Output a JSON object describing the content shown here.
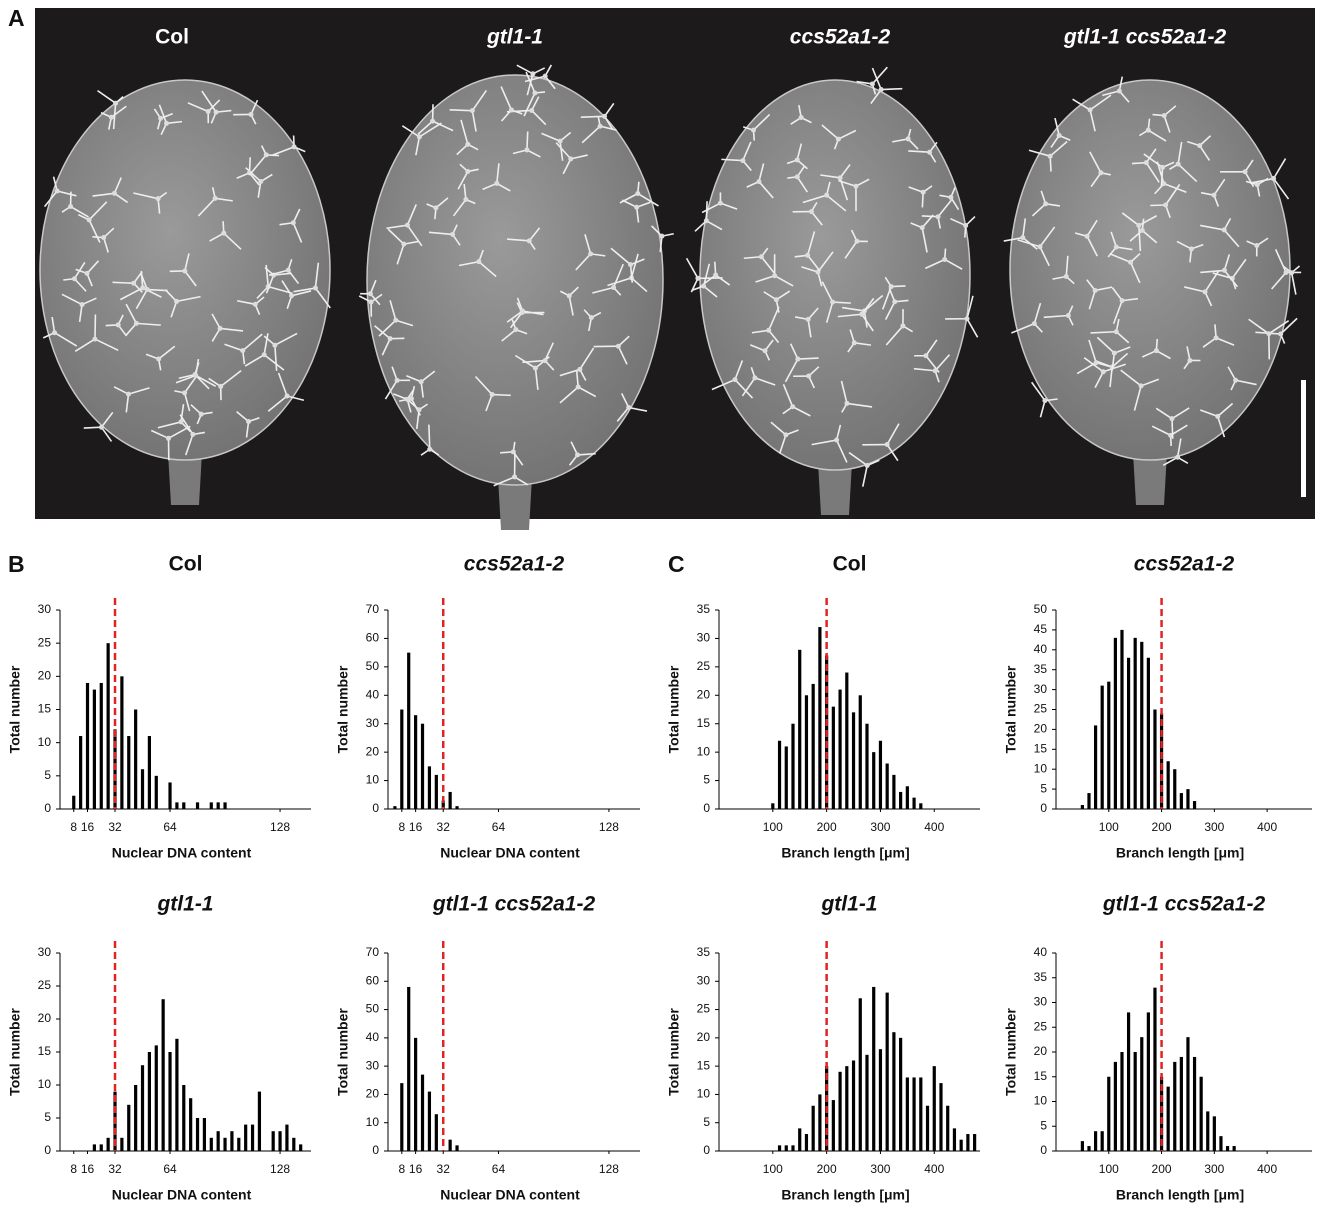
{
  "panel_labels": [
    "A",
    "B",
    "C"
  ],
  "panel_a": {
    "labels": [
      "Col",
      "gtl1-1",
      "ccs52a1-2",
      "gtl1-1 ccs52a1-2"
    ]
  },
  "chart_data": [
    {
      "type": "bar",
      "title": "Col",
      "x_label": "Nuclear DNA content",
      "y_label": "Total number",
      "x": [
        4,
        8,
        12,
        16,
        20,
        24,
        28,
        32,
        36,
        40,
        44,
        48,
        52,
        56,
        60,
        64,
        68,
        72,
        76,
        80,
        84,
        88,
        92,
        96,
        100,
        104,
        108,
        112,
        116,
        120,
        124,
        128,
        132,
        136,
        140,
        144
      ],
      "values": [
        0,
        2,
        11,
        19,
        18,
        19,
        25,
        12,
        20,
        11,
        15,
        6,
        11,
        5,
        0,
        4,
        1,
        1,
        0,
        1,
        0,
        1,
        1,
        1,
        0,
        0,
        0,
        0,
        0,
        0,
        0,
        0,
        0,
        0,
        0,
        0
      ],
      "color": "#000000",
      "xlim": [
        0,
        146
      ],
      "xticks": [
        8,
        16,
        32,
        64,
        128
      ],
      "ylim": [
        0,
        30
      ],
      "yticks": [
        0,
        5,
        10,
        15,
        20,
        25,
        30
      ],
      "ref_line": {
        "value": 32,
        "color": "#e02424"
      }
    },
    {
      "type": "bar",
      "title": "ccs52a1-2",
      "x_label": "Nuclear DNA content",
      "y_label": "Total number",
      "x": [
        4,
        8,
        12,
        16,
        20,
        24,
        28,
        32,
        36,
        40,
        44,
        48,
        52,
        56,
        60,
        64,
        68,
        72,
        76,
        80,
        84,
        88,
        92,
        96,
        100,
        104,
        108,
        112,
        116,
        120,
        124,
        128,
        132,
        136,
        140,
        144
      ],
      "values": [
        1,
        35,
        55,
        33,
        30,
        15,
        12,
        3,
        6,
        1,
        0,
        0,
        0,
        0,
        0,
        0,
        0,
        0,
        0,
        0,
        0,
        0,
        0,
        0,
        0,
        0,
        0,
        0,
        0,
        0,
        0,
        0,
        0,
        0,
        0,
        0
      ],
      "color": "#000000",
      "xlim": [
        0,
        146
      ],
      "xticks": [
        8,
        16,
        32,
        64,
        128
      ],
      "ylim": [
        0,
        70
      ],
      "yticks": [
        0,
        10,
        20,
        30,
        40,
        50,
        60,
        70
      ],
      "ref_line": {
        "value": 32,
        "color": "#e02424"
      }
    },
    {
      "type": "bar",
      "title": "gtl1-1",
      "x_label": "Nuclear DNA content",
      "y_label": "Total number",
      "x": [
        4,
        8,
        12,
        16,
        20,
        24,
        28,
        32,
        36,
        40,
        44,
        48,
        52,
        56,
        60,
        64,
        68,
        72,
        76,
        80,
        84,
        88,
        92,
        96,
        100,
        104,
        108,
        112,
        116,
        120,
        124,
        128,
        132,
        136,
        140,
        144
      ],
      "values": [
        0,
        0,
        0,
        0,
        1,
        1,
        2,
        9,
        2,
        7,
        10,
        13,
        15,
        16,
        23,
        15,
        17,
        10,
        8,
        5,
        5,
        2,
        3,
        2,
        3,
        2,
        4,
        4,
        9,
        0,
        3,
        3,
        4,
        2,
        1,
        0
      ],
      "color": "#000000",
      "xlim": [
        0,
        146
      ],
      "xticks": [
        8,
        16,
        32,
        64,
        128
      ],
      "ylim": [
        0,
        30
      ],
      "yticks": [
        0,
        5,
        10,
        15,
        20,
        25,
        30
      ],
      "ref_line": {
        "value": 32,
        "color": "#e02424"
      }
    },
    {
      "type": "bar",
      "title": "gtl1-1 ccs52a1-2",
      "x_label": "Nuclear DNA content",
      "y_label": "Total number",
      "x": [
        4,
        8,
        12,
        16,
        20,
        24,
        28,
        32,
        36,
        40,
        44,
        48,
        52,
        56,
        60,
        64,
        68,
        72,
        76,
        80,
        84,
        88,
        92,
        96,
        100,
        104,
        108,
        112,
        116,
        120,
        124,
        128,
        132,
        136,
        140,
        144
      ],
      "values": [
        0,
        24,
        58,
        40,
        27,
        21,
        13,
        0,
        4,
        2,
        0,
        0,
        0,
        0,
        0,
        0,
        0,
        0,
        0,
        0,
        0,
        0,
        0,
        0,
        0,
        0,
        0,
        0,
        0,
        0,
        0,
        0,
        0,
        0,
        0,
        0
      ],
      "color": "#000000",
      "xlim": [
        0,
        146
      ],
      "xticks": [
        8,
        16,
        32,
        64,
        128
      ],
      "ylim": [
        0,
        70
      ],
      "yticks": [
        0,
        10,
        20,
        30,
        40,
        50,
        60,
        70
      ],
      "ref_line": {
        "value": 32,
        "color": "#e02424"
      }
    },
    {
      "type": "bar",
      "title": "Col",
      "x_label": "Branch length [μm]",
      "y_label": "Total number",
      "x": [
        12.5,
        25,
        37.5,
        50,
        62.5,
        75,
        87.5,
        100,
        112.5,
        125,
        137.5,
        150,
        162.5,
        175,
        187.5,
        200,
        212.5,
        225,
        237.5,
        250,
        262.5,
        275,
        287.5,
        300,
        312.5,
        325,
        337.5,
        350,
        362.5,
        375,
        387.5,
        400,
        412.5,
        425,
        437.5,
        450,
        462.5,
        475
      ],
      "values": [
        0,
        0,
        0,
        0,
        0,
        0,
        0,
        1,
        12,
        11,
        15,
        28,
        20,
        22,
        32,
        27,
        18,
        21,
        24,
        17,
        20,
        15,
        10,
        12,
        8,
        6,
        3,
        4,
        2,
        1,
        0,
        0,
        0,
        0,
        0,
        0,
        0,
        0
      ],
      "color": "#000000",
      "xlim": [
        0,
        485
      ],
      "xticks": [
        100,
        200,
        300,
        400
      ],
      "ylim": [
        0,
        35
      ],
      "yticks": [
        0,
        5,
        10,
        15,
        20,
        25,
        30,
        35
      ],
      "ref_line": {
        "value": 200,
        "color": "#e02424"
      }
    },
    {
      "type": "bar",
      "title": "ccs52a1-2",
      "x_label": "Branch length [μm]",
      "y_label": "Total number",
      "x": [
        12.5,
        25,
        37.5,
        50,
        62.5,
        75,
        87.5,
        100,
        112.5,
        125,
        137.5,
        150,
        162.5,
        175,
        187.5,
        200,
        212.5,
        225,
        237.5,
        250,
        262.5,
        275,
        287.5,
        300,
        312.5,
        325,
        337.5,
        350,
        362.5,
        375,
        387.5,
        400,
        412.5,
        425,
        437.5,
        450,
        462.5,
        475
      ],
      "values": [
        0,
        0,
        0,
        1,
        4,
        21,
        31,
        32,
        43,
        45,
        38,
        43,
        42,
        38,
        25,
        24,
        12,
        10,
        4,
        5,
        2,
        0,
        0,
        0,
        0,
        0,
        0,
        0,
        0,
        0,
        0,
        0,
        0,
        0,
        0,
        0,
        0,
        0
      ],
      "color": "#000000",
      "xlim": [
        0,
        485
      ],
      "xticks": [
        100,
        200,
        300,
        400
      ],
      "ylim": [
        0,
        50
      ],
      "yticks": [
        0,
        5,
        10,
        15,
        20,
        25,
        30,
        35,
        40,
        45,
        50
      ],
      "ref_line": {
        "value": 200,
        "color": "#e02424"
      }
    },
    {
      "type": "bar",
      "title": "gtl1-1",
      "x_label": "Branch length [μm]",
      "y_label": "Total number",
      "x": [
        12.5,
        25,
        37.5,
        50,
        62.5,
        75,
        87.5,
        100,
        112.5,
        125,
        137.5,
        150,
        162.5,
        175,
        187.5,
        200,
        212.5,
        225,
        237.5,
        250,
        262.5,
        275,
        287.5,
        300,
        312.5,
        325,
        337.5,
        350,
        362.5,
        375,
        387.5,
        400,
        412.5,
        425,
        437.5,
        450,
        462.5,
        475
      ],
      "values": [
        0,
        0,
        0,
        0,
        0,
        0,
        0,
        0,
        1,
        1,
        1,
        4,
        3,
        8,
        10,
        15,
        9,
        14,
        15,
        16,
        27,
        17,
        29,
        18,
        28,
        21,
        20,
        13,
        13,
        13,
        8,
        15,
        12,
        8,
        4,
        2,
        3,
        3
      ],
      "color": "#000000",
      "xlim": [
        0,
        485
      ],
      "xticks": [
        100,
        200,
        300,
        400
      ],
      "ylim": [
        0,
        35
      ],
      "yticks": [
        0,
        5,
        10,
        15,
        20,
        25,
        30,
        35
      ],
      "ref_line": {
        "value": 200,
        "color": "#e02424"
      }
    },
    {
      "type": "bar",
      "title": "gtl1-1 ccs52a1-2",
      "x_label": "Branch length [μm]",
      "y_label": "Total number",
      "x": [
        12.5,
        25,
        37.5,
        50,
        62.5,
        75,
        87.5,
        100,
        112.5,
        125,
        137.5,
        150,
        162.5,
        175,
        187.5,
        200,
        212.5,
        225,
        237.5,
        250,
        262.5,
        275,
        287.5,
        300,
        312.5,
        325,
        337.5,
        350,
        362.5,
        375,
        387.5,
        400,
        412.5,
        425,
        437.5,
        450,
        462.5,
        475
      ],
      "values": [
        0,
        0,
        0,
        2,
        1,
        4,
        4,
        15,
        18,
        20,
        28,
        20,
        23,
        28,
        33,
        15,
        13,
        18,
        19,
        23,
        19,
        15,
        8,
        7,
        3,
        1,
        1,
        0,
        0,
        0,
        0,
        0,
        0,
        0,
        0,
        0,
        0,
        0
      ],
      "color": "#000000",
      "xlim": [
        0,
        485
      ],
      "xticks": [
        100,
        200,
        300,
        400
      ],
      "ylim": [
        0,
        40
      ],
      "yticks": [
        0,
        5,
        10,
        15,
        20,
        25,
        30,
        35,
        40
      ],
      "ref_line": {
        "value": 200,
        "color": "#e02424"
      }
    }
  ]
}
